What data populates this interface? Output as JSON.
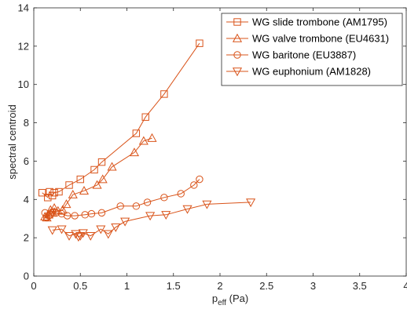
{
  "chart_data": {
    "type": "line",
    "xlabel": "p",
    "xlabel_subscript": "eff",
    "xlabel_unit": " (Pa)",
    "ylabel": "spectral centroid",
    "xlim": [
      0,
      4
    ],
    "ylim": [
      0,
      14
    ],
    "xticks": [
      0,
      0.5,
      1,
      1.5,
      2,
      2.5,
      3,
      3.5,
      4
    ],
    "xtick_labels": [
      "0",
      "0.5",
      "1",
      "1.5",
      "2",
      "2.5",
      "3",
      "3.5",
      "4"
    ],
    "yticks": [
      0,
      2,
      4,
      6,
      8,
      10,
      12,
      14
    ],
    "ytick_labels": [
      "0",
      "2",
      "4",
      "6",
      "8",
      "10",
      "12",
      "14"
    ],
    "grid": false,
    "legend_position": "top-right",
    "series_color": "#D95319",
    "series": [
      {
        "name": "WG slide trombone (AM1795)",
        "marker": "square",
        "x": [
          0.09,
          0.15,
          0.17,
          0.2,
          0.22,
          0.27,
          0.38,
          0.5,
          0.65,
          0.73,
          1.1,
          1.2,
          1.4,
          1.78
        ],
        "y": [
          4.35,
          4.1,
          4.4,
          4.2,
          4.35,
          4.4,
          4.75,
          5.05,
          5.55,
          5.95,
          7.45,
          8.3,
          9.5,
          12.15
        ]
      },
      {
        "name": "WG valve trombone (EU4631)",
        "marker": "triangle-up",
        "x": [
          0.12,
          0.14,
          0.16,
          0.18,
          0.2,
          0.22,
          0.26,
          0.31,
          0.35,
          0.42,
          0.54,
          0.68,
          0.74,
          0.84,
          1.08,
          1.18,
          1.27
        ],
        "y": [
          3.1,
          3.05,
          3.2,
          3.45,
          3.3,
          3.55,
          3.4,
          3.45,
          3.75,
          4.25,
          4.45,
          4.75,
          5.05,
          5.7,
          6.45,
          7.05,
          7.2
        ]
      },
      {
        "name": "WG baritone (EU3887)",
        "marker": "circle",
        "x": [
          0.12,
          0.14,
          0.16,
          0.18,
          0.2,
          0.24,
          0.3,
          0.36,
          0.44,
          0.55,
          0.62,
          0.73,
          0.93,
          1.1,
          1.22,
          1.4,
          1.58,
          1.72,
          1.78
        ],
        "y": [
          3.3,
          3.05,
          3.15,
          3.2,
          3.35,
          3.3,
          3.25,
          3.15,
          3.15,
          3.2,
          3.25,
          3.3,
          3.65,
          3.65,
          3.85,
          4.1,
          4.3,
          4.75,
          5.05
        ]
      },
      {
        "name": "WG euphonium (AM1828)",
        "marker": "triangle-down",
        "x": [
          0.2,
          0.3,
          0.38,
          0.45,
          0.48,
          0.5,
          0.53,
          0.61,
          0.72,
          0.8,
          0.88,
          0.98,
          1.25,
          1.42,
          1.65,
          1.86,
          2.33
        ],
        "y": [
          2.4,
          2.45,
          2.1,
          2.2,
          2.05,
          2.1,
          2.25,
          2.1,
          2.45,
          2.2,
          2.55,
          2.85,
          3.15,
          3.2,
          3.5,
          3.75,
          3.85
        ]
      }
    ]
  }
}
